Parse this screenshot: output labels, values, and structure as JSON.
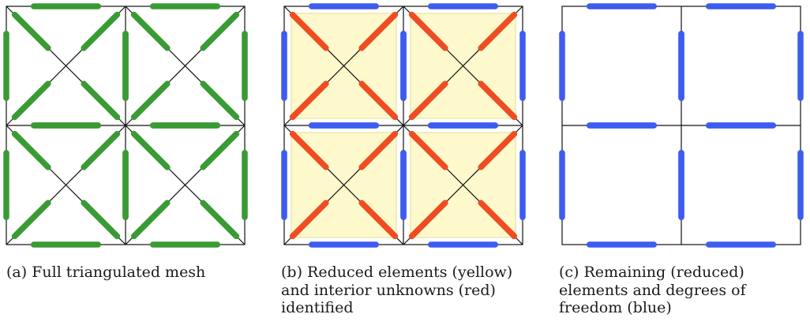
{
  "panels": [
    {
      "id": "a",
      "caption": "(a) Full triangulated mesh",
      "show_diagonals": true,
      "show_yellow": false,
      "edge_color": "#3a9a34",
      "inner_color": "#3a9a34"
    },
    {
      "id": "b",
      "caption": "(b) Reduced elements (yellow) and interior unknowns (red) identified",
      "show_diagonals": true,
      "show_yellow": true,
      "edge_color": "#3d5cf0",
      "inner_color": "#f04c22"
    },
    {
      "id": "c",
      "caption": "(c) Remaining (reduced) elements and degrees of freedom (blue)",
      "show_diagonals": false,
      "show_yellow": false,
      "edge_color": "#3d5cf0",
      "inner_color": null
    }
  ],
  "colors": {
    "mesh_line": "#111111",
    "reduced_fill": "#fdf9cc",
    "reduced_border": "#ece7b0"
  }
}
